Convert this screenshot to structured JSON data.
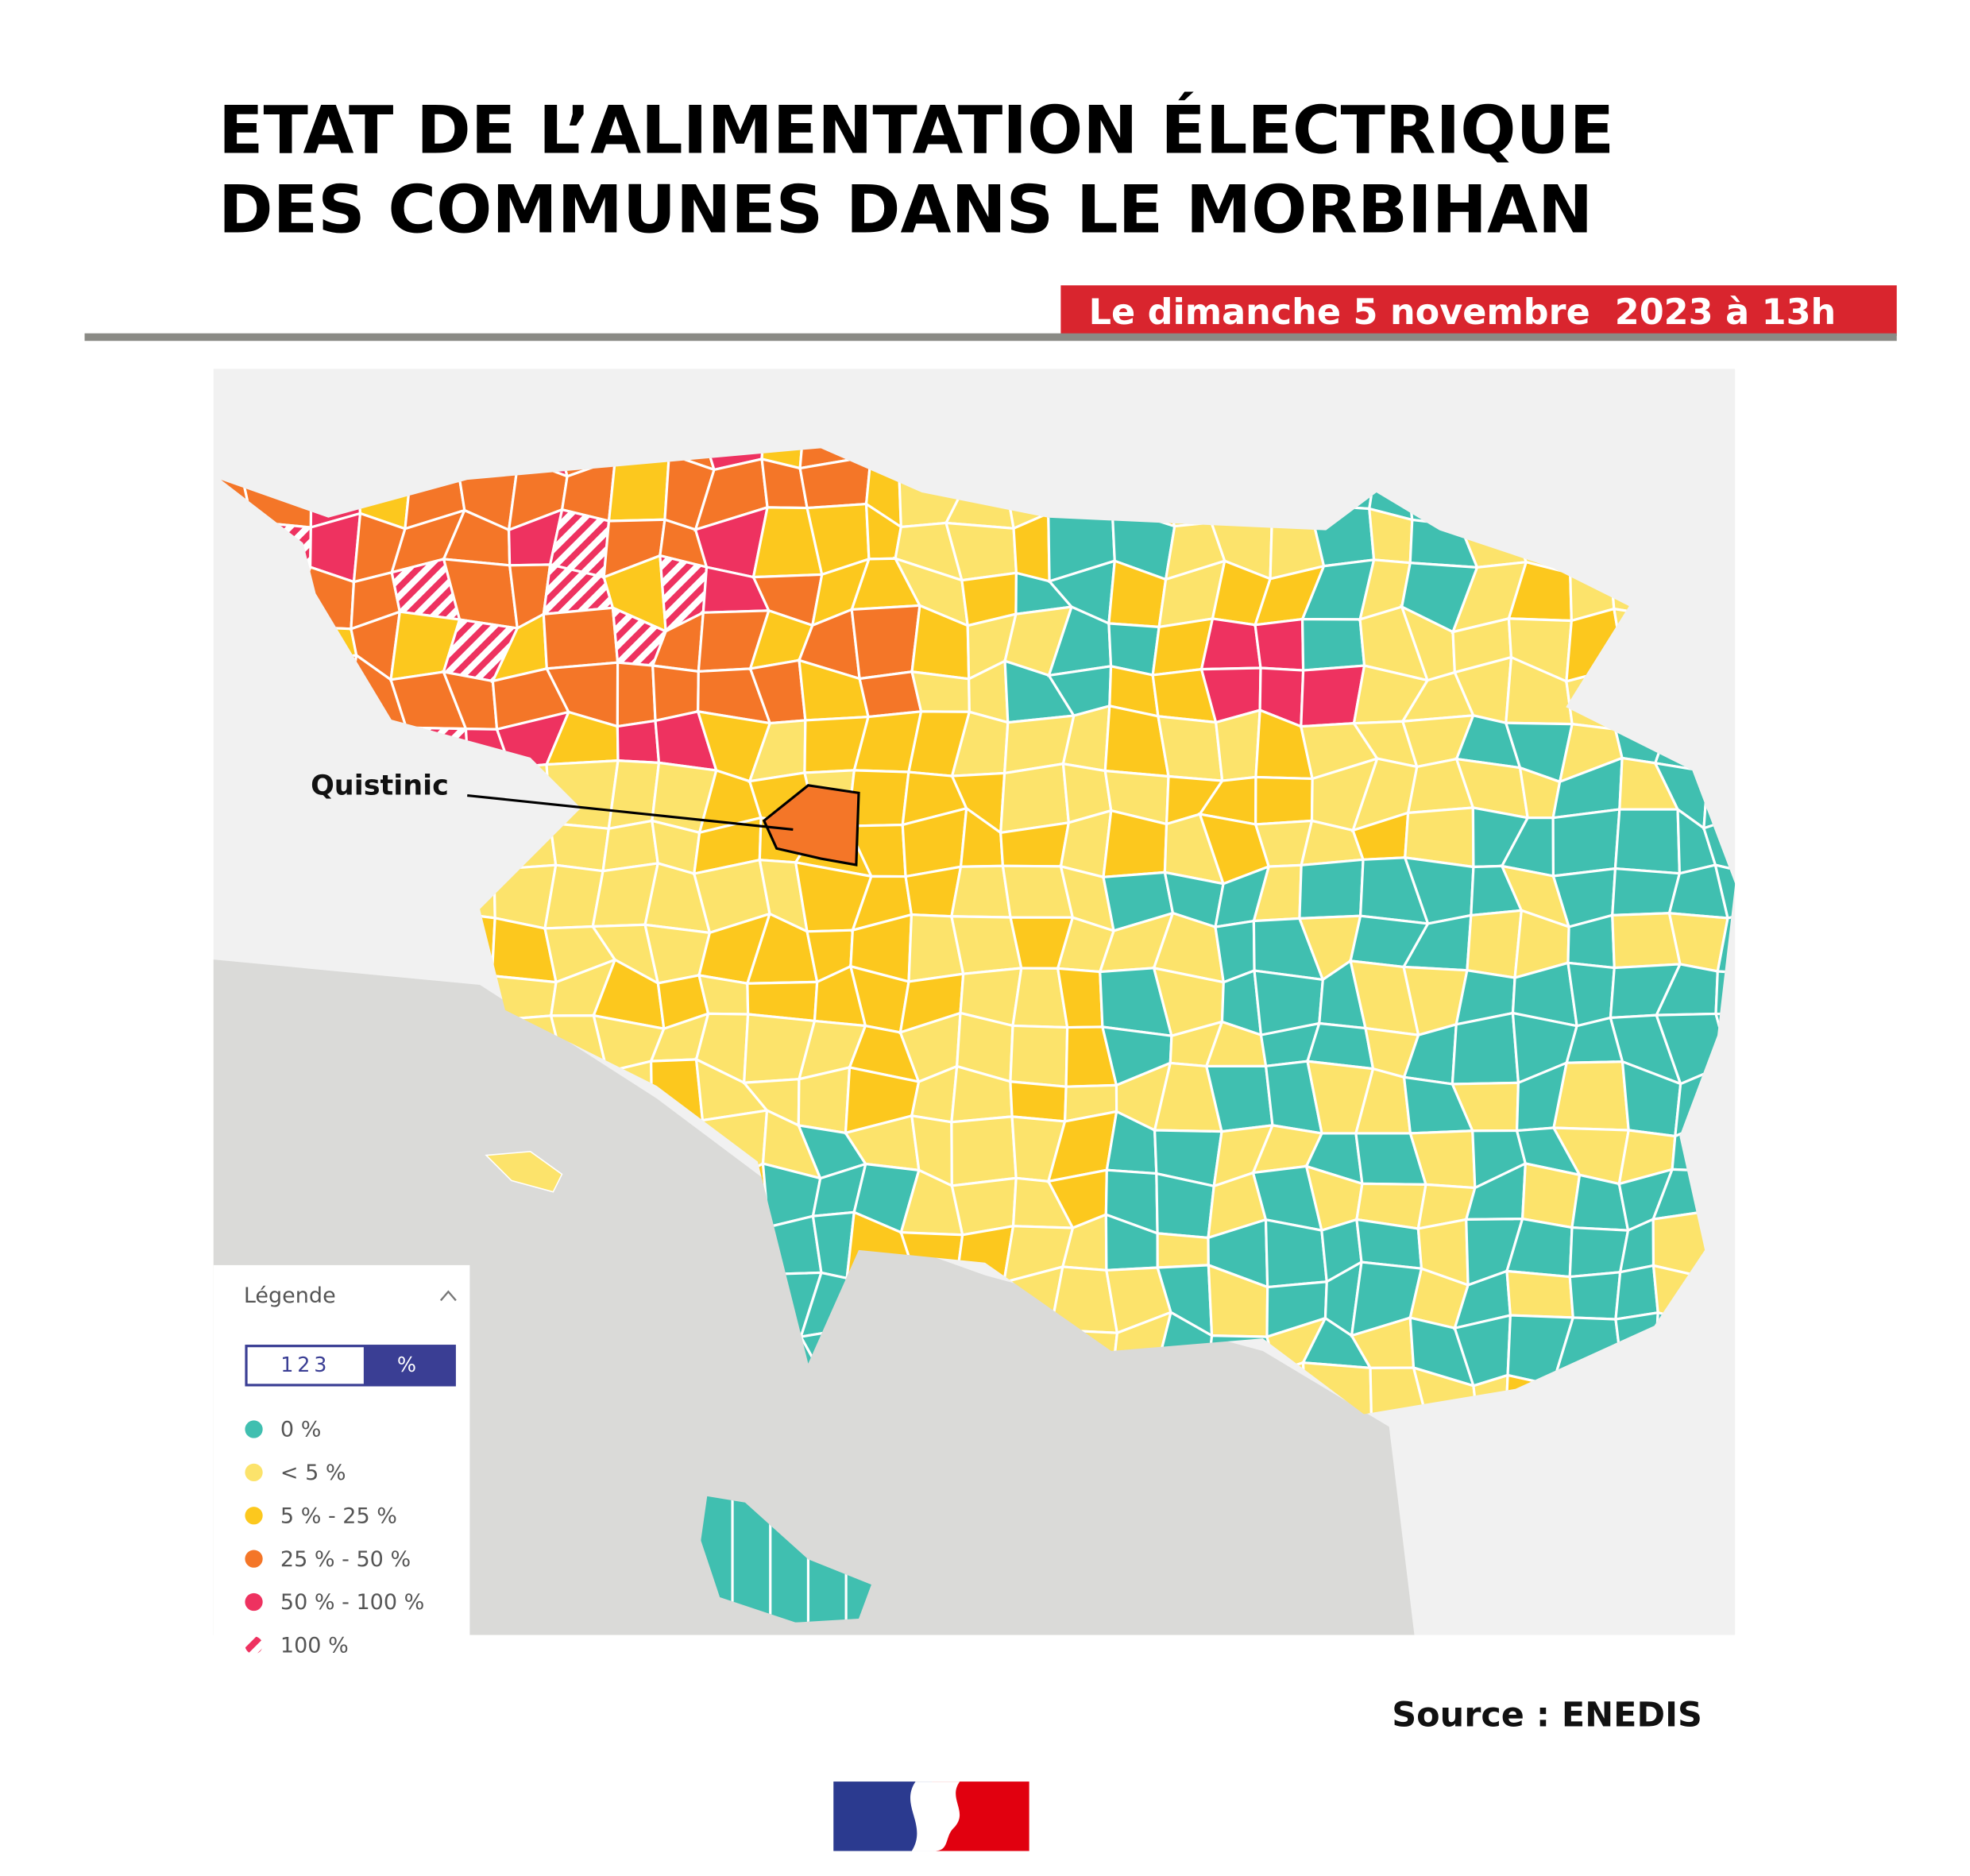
{
  "header": {
    "title": [
      "ETAT DE L’ALIMENTATION ÉLECTRIQUE",
      "DES COMMUNES DANS LE MORBIHAN"
    ],
    "date": "Le dimanche 5 novembre  2023 à 13h"
  },
  "map": {
    "annotation": "Quistinic",
    "legend": {
      "title": "Légende",
      "toggle": [
        "123",
        "%"
      ],
      "items": [
        {
          "label": "0 %",
          "color": "#40bfb0"
        },
        {
          "label": "< 5 %",
          "color": "#fce36b"
        },
        {
          "label": "5 % - 25 %",
          "color": "#fcc81e"
        },
        {
          "label": "25 % - 50 %",
          "color": "#f47628"
        },
        {
          "label": "50 % - 100 %",
          "color": "#ee3260"
        },
        {
          "label": "100 %",
          "color": "#ee3260",
          "pattern": "hatch"
        }
      ]
    }
  },
  "source": "Source : ENEDIS"
}
